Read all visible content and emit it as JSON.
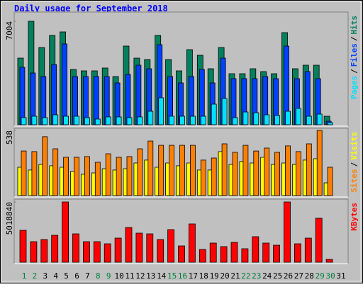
{
  "chart_data": [
    {
      "type": "bar",
      "title": "Daily usage for September 2018",
      "ylim": [
        0,
        7004
      ],
      "yticks": [
        7004
      ],
      "legend_separator": "/",
      "series": [
        {
          "name": "Hits",
          "color": "#00805c",
          "values": [
            4509,
            7004,
            5229,
            6045,
            6284,
            3742,
            3646,
            3646,
            3838,
            3262,
            5325,
            4509,
            4413,
            6045,
            4413,
            3646,
            5085,
            4701,
            3790,
            5229,
            3454,
            3454,
            3790,
            3598,
            3454,
            6236,
            3790,
            4030,
            4030,
            576,
            0
          ]
        },
        {
          "name": "Files",
          "color": "#0040ff",
          "values": [
            3886,
            3502,
            3262,
            4078,
            5469,
            3262,
            3262,
            3262,
            3262,
            2830,
            3406,
            4030,
            3790,
            5421,
            3262,
            2830,
            3262,
            3742,
            2830,
            4509,
            3118,
            3118,
            3118,
            3262,
            3118,
            5325,
            3118,
            3598,
            3118,
            240,
            0
          ]
        },
        {
          "name": "Pages",
          "color": "#00e0ff",
          "values": [
            480,
            576,
            480,
            672,
            576,
            576,
            480,
            384,
            528,
            528,
            480,
            528,
            911,
            1823,
            576,
            576,
            576,
            576,
            1391,
            1775,
            480,
            863,
            815,
            672,
            624,
            911,
            1103,
            576,
            720,
            144,
            0
          ]
        }
      ]
    },
    {
      "type": "bar",
      "ylim": [
        0,
        538
      ],
      "yticks": [
        538
      ],
      "legend_separator": "/",
      "series": [
        {
          "name": "Visits",
          "color": "#ffff00",
          "values": [
            234,
            211,
            257,
            246,
            234,
            199,
            176,
            187,
            222,
            211,
            222,
            269,
            293,
            234,
            269,
            246,
            269,
            211,
            211,
            363,
            257,
            281,
            269,
            316,
            257,
            269,
            257,
            293,
            304,
            105,
            0
          ]
        },
        {
          "name": "Sites",
          "color": "#ff8000",
          "values": [
            368,
            363,
            486,
            386,
            316,
            316,
            322,
            275,
            345,
            316,
            322,
            386,
            450,
            415,
            415,
            415,
            415,
            293,
            310,
            427,
            357,
            415,
            368,
            392,
            357,
            410,
            363,
            427,
            538,
            234,
            0
          ]
        }
      ]
    },
    {
      "type": "bar",
      "ylim": [
        0,
        5018840
      ],
      "yticks": [
        5018840
      ],
      "categories": [
        "1",
        "2",
        "3",
        "4",
        "5",
        "6",
        "7",
        "8",
        "9",
        "10",
        "11",
        "12",
        "13",
        "14",
        "15",
        "16",
        "17",
        "18",
        "19",
        "20",
        "21",
        "22",
        "23",
        "24",
        "25",
        "26",
        "27",
        "28",
        "29",
        "30",
        "31"
      ],
      "highlight_indices": [
        0,
        1,
        7,
        8,
        14,
        15,
        21,
        22,
        28,
        29
      ],
      "highlight_color": "#008040",
      "series": [
        {
          "name": "KBytes",
          "color": "#ff0000",
          "values": [
            2657000,
            1712000,
            1889000,
            2244000,
            5018840,
            2362000,
            1712000,
            1712000,
            1535000,
            2008000,
            2893000,
            2421000,
            2362000,
            1889000,
            2716000,
            1358000,
            3188000,
            1063000,
            1594000,
            1299000,
            1653000,
            1122000,
            2126000,
            1594000,
            1417000,
            5018840,
            1535000,
            2008000,
            3661000,
            236000,
            0
          ]
        }
      ]
    }
  ]
}
